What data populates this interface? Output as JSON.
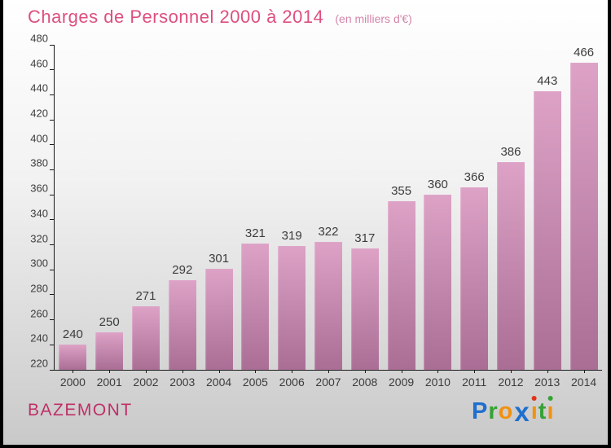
{
  "header": {
    "title": "Charges de Personnel 2000 à 2014",
    "subtitle": "(en milliers d'€)"
  },
  "chart_data": {
    "type": "bar",
    "title": "Charges de Personnel 2000 à 2014",
    "unit_note": "(en milliers d'€)",
    "categories": [
      "2000",
      "2001",
      "2002",
      "2003",
      "2004",
      "2005",
      "2006",
      "2007",
      "2008",
      "2009",
      "2010",
      "2011",
      "2012",
      "2013",
      "2014"
    ],
    "values": [
      240,
      250,
      271,
      292,
      301,
      321,
      319,
      322,
      317,
      355,
      360,
      366,
      386,
      443,
      466
    ],
    "ylim": [
      220,
      480
    ],
    "yticks": [
      220,
      240,
      260,
      280,
      300,
      320,
      340,
      360,
      380,
      400,
      420,
      440,
      460,
      480
    ],
    "grid": false,
    "legend": "none",
    "bar_labels_shown": true
  },
  "footer": {
    "location": "BAZEMONT",
    "logo": {
      "text": "Proxiti",
      "letters": [
        {
          "char": "P",
          "color": "#1e6fce"
        },
        {
          "char": "r",
          "color": "#35a235"
        },
        {
          "char": "o",
          "color": "#f29111"
        },
        {
          "char": "x",
          "color": "#1e6fce",
          "is_x": true
        },
        {
          "char": "ı",
          "color": "#f29111",
          "dot": "#e03318"
        },
        {
          "char": "t",
          "color": "#35a235"
        },
        {
          "char": "ı",
          "color": "#f29111",
          "dot": "#35a235"
        }
      ]
    }
  },
  "colors": {
    "title": "#dd4f7f",
    "subtitle": "#d585ab",
    "location": "#bf3067",
    "bar_top": "#dda2c6",
    "bar_bottom": "#aa6e95",
    "axis": "#1a1a1a",
    "label_text": "#3c3c3c",
    "background_top": "#ffffff",
    "background_bottom": "#c9c9c9"
  }
}
